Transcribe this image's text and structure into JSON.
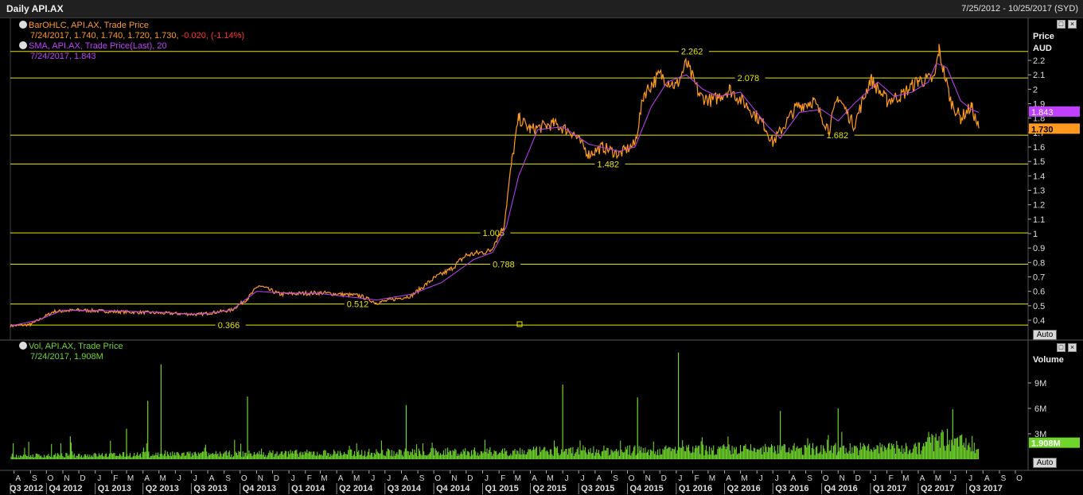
{
  "window": {
    "title": "Daily API.AX",
    "date_range": "7/25/2012 - 10/25/2017 (SYD)"
  },
  "legend": {
    "ohlc_name": "BarOHLC, API.AX, Trade Price",
    "ohlc_values": "7/24/2017, 1.740, 1.740, 1.720, 1.730,",
    "ohlc_change": "-0.020, (-1.14%)",
    "sma_name": "SMA, API.AX, Trade Price(Last), 20",
    "sma_values": "7/24/2017, 1.843",
    "vol_name": "Vol, API.AX, Trade Price",
    "vol_values": "7/24/2017, 1.908M"
  },
  "buttons": {
    "auto": "Auto"
  },
  "colors": {
    "price": "#ff9a1f",
    "sma": "#c040ff",
    "volume": "#6fd52c",
    "levels": "#e6e600"
  },
  "chart_data": [
    {
      "type": "line",
      "panel": "price",
      "ylabel": "Price",
      "unit": "AUD",
      "ylim": [
        0.35,
        2.35
      ],
      "y_ticks": [
        0.4,
        0.5,
        0.6,
        0.7,
        0.8,
        0.9,
        1,
        1.1,
        1.2,
        1.3,
        1.4,
        1.5,
        1.6,
        1.7,
        1.8,
        1.9,
        2,
        2.1,
        2.2
      ],
      "last_price": "1.730",
      "last_sma": "1.843",
      "levels": [
        {
          "value": 2.262,
          "label": "2.262",
          "x": "2016-01-10"
        },
        {
          "value": 2.078,
          "label": "2.078",
          "x": "2016-04-25"
        },
        {
          "value": 1.682,
          "label": "1.682",
          "x": "2016-10-10"
        },
        {
          "value": 1.482,
          "label": "1.482",
          "x": "2015-08-05"
        },
        {
          "value": 1.005,
          "label": "1.005",
          "x": "2015-01-01"
        },
        {
          "value": 0.788,
          "label": "0.788",
          "x": "2015-01-20"
        },
        {
          "value": 0.512,
          "label": "0.512",
          "x": "2014-04-20"
        },
        {
          "value": 0.366,
          "label": "0.366",
          "x": "2013-08-20"
        }
      ],
      "series": [
        {
          "name": "BarOHLC",
          "x": [
            "2012-07-25",
            "2012-09-01",
            "2012-10-15",
            "2012-12-01",
            "2013-02-01",
            "2013-05-01",
            "2013-07-15",
            "2013-09-15",
            "2013-10-15",
            "2013-11-05",
            "2013-12-15",
            "2014-03-01",
            "2014-05-15",
            "2014-06-15",
            "2014-08-20",
            "2014-10-01",
            "2014-11-01",
            "2014-12-01",
            "2015-01-15",
            "2015-02-10",
            "2015-02-25",
            "2015-03-10",
            "2015-04-01",
            "2015-05-15",
            "2015-06-20",
            "2015-07-20",
            "2015-08-15",
            "2015-09-15",
            "2015-10-15",
            "2015-11-01",
            "2015-12-01",
            "2016-01-01",
            "2016-01-20",
            "2016-02-15",
            "2016-03-10",
            "2016-04-10",
            "2016-05-15",
            "2016-06-15",
            "2016-07-01",
            "2016-08-15",
            "2016-09-15",
            "2016-10-15",
            "2016-11-01",
            "2016-12-01",
            "2017-01-01",
            "2017-02-01",
            "2017-03-01",
            "2017-04-01",
            "2017-05-01",
            "2017-05-10",
            "2017-06-01",
            "2017-06-20",
            "2017-07-10",
            "2017-07-24"
          ],
          "values": [
            0.36,
            0.37,
            0.46,
            0.47,
            0.46,
            0.45,
            0.44,
            0.47,
            0.55,
            0.64,
            0.58,
            0.59,
            0.57,
            0.52,
            0.57,
            0.69,
            0.75,
            0.85,
            0.88,
            1.05,
            1.5,
            1.8,
            1.72,
            1.76,
            1.7,
            1.55,
            1.6,
            1.55,
            1.62,
            1.97,
            2.1,
            2.02,
            2.18,
            1.95,
            1.92,
            2.0,
            1.88,
            1.75,
            1.63,
            1.88,
            1.92,
            1.72,
            1.95,
            1.75,
            2.07,
            1.92,
            1.96,
            2.06,
            2.07,
            2.27,
            1.92,
            1.8,
            1.88,
            1.73
          ]
        },
        {
          "name": "SMA",
          "x": [
            "2012-07-25",
            "2012-09-15",
            "2012-11-01",
            "2013-02-01",
            "2013-05-01",
            "2013-07-15",
            "2013-09-15",
            "2013-11-01",
            "2013-12-15",
            "2014-03-01",
            "2014-06-15",
            "2014-08-20",
            "2014-10-15",
            "2014-11-15",
            "2014-12-15",
            "2015-01-20",
            "2015-02-15",
            "2015-03-10",
            "2015-04-15",
            "2015-06-01",
            "2015-07-20",
            "2015-09-15",
            "2015-10-15",
            "2015-11-15",
            "2015-12-15",
            "2016-01-20",
            "2016-02-20",
            "2016-03-20",
            "2016-05-01",
            "2016-06-20",
            "2016-07-15",
            "2016-08-20",
            "2016-10-01",
            "2016-11-01",
            "2016-12-01",
            "2017-01-15",
            "2017-02-15",
            "2017-03-20",
            "2017-04-20",
            "2017-05-05",
            "2017-05-25",
            "2017-06-20",
            "2017-07-10",
            "2017-07-24"
          ],
          "values": [
            0.36,
            0.4,
            0.47,
            0.465,
            0.455,
            0.44,
            0.47,
            0.6,
            0.59,
            0.585,
            0.54,
            0.58,
            0.66,
            0.74,
            0.82,
            0.87,
            1.05,
            1.4,
            1.72,
            1.74,
            1.62,
            1.57,
            1.6,
            1.88,
            2.05,
            2.1,
            2.0,
            1.95,
            1.98,
            1.75,
            1.66,
            1.84,
            1.86,
            1.78,
            1.9,
            2.05,
            1.95,
            1.98,
            2.05,
            2.18,
            2.15,
            1.92,
            1.86,
            1.84
          ]
        }
      ]
    },
    {
      "type": "bar",
      "panel": "volume",
      "ylabel": "Volume",
      "y_ticks": [
        "3M",
        "6M",
        "9M"
      ],
      "last_volume": "1.908M",
      "spikes": [
        {
          "x": "2012-11-15",
          "value": 2.7
        },
        {
          "x": "2013-03-01",
          "value": 3.6
        },
        {
          "x": "2013-04-10",
          "value": 6.9
        },
        {
          "x": "2013-05-05",
          "value": 11.2
        },
        {
          "x": "2013-10-15",
          "value": 7.4
        },
        {
          "x": "2014-08-10",
          "value": 6.4
        },
        {
          "x": "2015-06-01",
          "value": 8.8
        },
        {
          "x": "2015-10-20",
          "value": 7.3
        },
        {
          "x": "2016-01-05",
          "value": 12.6
        },
        {
          "x": "2016-07-15",
          "value": 5.7
        },
        {
          "x": "2016-11-01",
          "value": 6.0
        },
        {
          "x": "2017-06-05",
          "value": 5.9
        }
      ]
    }
  ],
  "x_axis": {
    "months": [
      {
        "d": "2012-08-01",
        "l": "A"
      },
      {
        "d": "2012-09-01",
        "l": "S"
      },
      {
        "d": "2012-10-01",
        "l": "O"
      },
      {
        "d": "2012-11-01",
        "l": "N"
      },
      {
        "d": "2012-12-01",
        "l": "D"
      },
      {
        "d": "2013-01-01",
        "l": "J"
      },
      {
        "d": "2013-02-01",
        "l": "F"
      },
      {
        "d": "2013-03-01",
        "l": "M"
      },
      {
        "d": "2013-04-01",
        "l": "A"
      },
      {
        "d": "2013-05-01",
        "l": "M"
      },
      {
        "d": "2013-06-01",
        "l": "J"
      },
      {
        "d": "2013-07-01",
        "l": "J"
      },
      {
        "d": "2013-08-01",
        "l": "A"
      },
      {
        "d": "2013-09-01",
        "l": "S"
      },
      {
        "d": "2013-10-01",
        "l": "O"
      },
      {
        "d": "2013-11-01",
        "l": "N"
      },
      {
        "d": "2013-12-01",
        "l": "D"
      },
      {
        "d": "2014-01-01",
        "l": "J"
      },
      {
        "d": "2014-02-01",
        "l": "F"
      },
      {
        "d": "2014-03-01",
        "l": "M"
      },
      {
        "d": "2014-04-01",
        "l": "A"
      },
      {
        "d": "2014-05-01",
        "l": "M"
      },
      {
        "d": "2014-06-01",
        "l": "J"
      },
      {
        "d": "2014-07-01",
        "l": "J"
      },
      {
        "d": "2014-08-01",
        "l": "A"
      },
      {
        "d": "2014-09-01",
        "l": "S"
      },
      {
        "d": "2014-10-01",
        "l": "O"
      },
      {
        "d": "2014-11-01",
        "l": "N"
      },
      {
        "d": "2014-12-01",
        "l": "D"
      },
      {
        "d": "2015-01-01",
        "l": "J"
      },
      {
        "d": "2015-02-01",
        "l": "F"
      },
      {
        "d": "2015-03-01",
        "l": "M"
      },
      {
        "d": "2015-04-01",
        "l": "A"
      },
      {
        "d": "2015-05-01",
        "l": "M"
      },
      {
        "d": "2015-06-01",
        "l": "J"
      },
      {
        "d": "2015-07-01",
        "l": "J"
      },
      {
        "d": "2015-08-01",
        "l": "A"
      },
      {
        "d": "2015-09-01",
        "l": "S"
      },
      {
        "d": "2015-10-01",
        "l": "O"
      },
      {
        "d": "2015-11-01",
        "l": "N"
      },
      {
        "d": "2015-12-01",
        "l": "D"
      },
      {
        "d": "2016-01-01",
        "l": "J"
      },
      {
        "d": "2016-02-01",
        "l": "F"
      },
      {
        "d": "2016-03-01",
        "l": "M"
      },
      {
        "d": "2016-04-01",
        "l": "A"
      },
      {
        "d": "2016-05-01",
        "l": "M"
      },
      {
        "d": "2016-06-01",
        "l": "J"
      },
      {
        "d": "2016-07-01",
        "l": "J"
      },
      {
        "d": "2016-08-01",
        "l": "A"
      },
      {
        "d": "2016-09-01",
        "l": "S"
      },
      {
        "d": "2016-10-01",
        "l": "O"
      },
      {
        "d": "2016-11-01",
        "l": "N"
      },
      {
        "d": "2016-12-01",
        "l": "D"
      },
      {
        "d": "2017-01-01",
        "l": "J"
      },
      {
        "d": "2017-02-01",
        "l": "F"
      },
      {
        "d": "2017-03-01",
        "l": "M"
      },
      {
        "d": "2017-04-01",
        "l": "A"
      },
      {
        "d": "2017-05-01",
        "l": "M"
      },
      {
        "d": "2017-06-01",
        "l": "J"
      },
      {
        "d": "2017-07-01",
        "l": "J"
      },
      {
        "d": "2017-08-01",
        "l": "A"
      },
      {
        "d": "2017-09-01",
        "l": "S"
      },
      {
        "d": "2017-10-01",
        "l": "O"
      }
    ],
    "quarters": [
      {
        "d": "2012-07-25",
        "l": "Q3 2012"
      },
      {
        "d": "2012-10-01",
        "l": "Q4 2012"
      },
      {
        "d": "2013-01-01",
        "l": "Q1 2013"
      },
      {
        "d": "2013-04-01",
        "l": "Q2 2013"
      },
      {
        "d": "2013-07-01",
        "l": "Q3 2013"
      },
      {
        "d": "2013-10-01",
        "l": "Q4 2013"
      },
      {
        "d": "2014-01-01",
        "l": "Q1 2014"
      },
      {
        "d": "2014-04-01",
        "l": "Q2 2014"
      },
      {
        "d": "2014-07-01",
        "l": "Q3 2014"
      },
      {
        "d": "2014-10-01",
        "l": "Q4 2014"
      },
      {
        "d": "2015-01-01",
        "l": "Q1 2015"
      },
      {
        "d": "2015-04-01",
        "l": "Q2 2015"
      },
      {
        "d": "2015-07-01",
        "l": "Q3 2015"
      },
      {
        "d": "2015-10-01",
        "l": "Q4 2015"
      },
      {
        "d": "2016-01-01",
        "l": "Q1 2016"
      },
      {
        "d": "2016-04-01",
        "l": "Q2 2016"
      },
      {
        "d": "2016-07-01",
        "l": "Q3 2016"
      },
      {
        "d": "2016-10-01",
        "l": "Q4 2016"
      },
      {
        "d": "2017-01-01",
        "l": "Q1 2017"
      },
      {
        "d": "2017-04-01",
        "l": "Q2 2017"
      },
      {
        "d": "2017-07-01",
        "l": "Q3 2017"
      }
    ]
  }
}
